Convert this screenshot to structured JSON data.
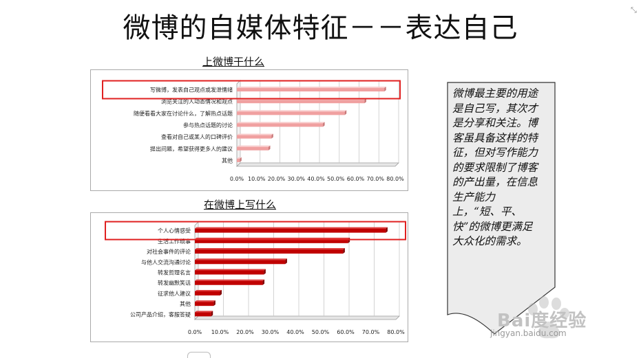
{
  "slide": {
    "title": "微博的自媒体特征－－表达自己",
    "callout": "微博最主要的用途是自己写，其次才是分享和关注。博客虽具备这样的特征，但对写作能力的要求限制了博客的产出量，在信息生产能力上，“短、平、快”的微博更满足大众化的需求。",
    "watermark": {
      "logo": "Bai度经验",
      "url": "jingyan.baidu.com"
    },
    "icons": [
      "expand-icon",
      "baidu-paw-icon"
    ],
    "colors": {
      "chart1_bar": "#f0a0a0",
      "chart2_bar": "#c00000",
      "highlight": "#e02020"
    }
  },
  "chart_data": [
    {
      "type": "bar",
      "orientation": "horizontal",
      "title": "上微博干什么",
      "categories": [
        "写微博，发表自己观点或发泄情绪",
        "浏览关注的人动态情况和观点",
        "随便看看大家在讨论什么，了解热点话题",
        "参与热点话题的讨论",
        "查看对自己或某人的口碑评价",
        "提出问题，希望获得更多人的建议",
        "其他"
      ],
      "values": [
        74.5,
        64.5,
        54.5,
        43.5,
        17.5,
        16.0,
        1.5
      ],
      "xlim": [
        0,
        80
      ],
      "ticks": [
        "0.0%",
        "10.0%",
        "20.0%",
        "30.0%",
        "40.0%",
        "50.0%",
        "60.0%",
        "70.0%",
        "80.0%"
      ],
      "grid": true,
      "highlight_index": 0
    },
    {
      "type": "bar",
      "orientation": "horizontal",
      "title": "在微博上写什么",
      "categories": [
        "个人心情感受",
        "生活工作琐事",
        "对社会事件的评论",
        "与他人交流沟通讨论",
        "转发哲理名言",
        "转发幽默笑话",
        "征求他人建议",
        "其他",
        "公司产品介绍，客服答疑"
      ],
      "values": [
        76.0,
        61.0,
        59.0,
        36.0,
        27.5,
        27.0,
        10.0,
        7.5,
        6.5
      ],
      "xlim": [
        0,
        80
      ],
      "ticks": [
        "0.0%",
        "10.0%",
        "20.0%",
        "30.0%",
        "40.0%",
        "50.0%",
        "60.0%",
        "70.0%",
        "80.0%"
      ],
      "grid": true,
      "highlight_index": 0
    }
  ]
}
